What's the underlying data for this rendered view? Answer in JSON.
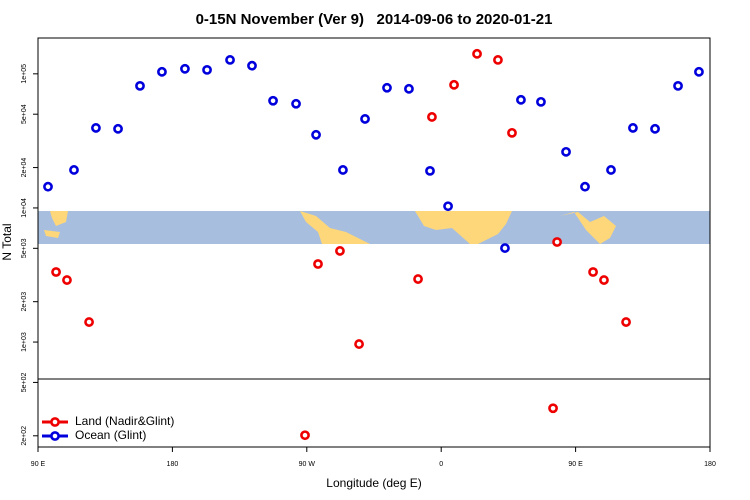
{
  "chart_data": {
    "type": "scatter",
    "title": "0-15N November (Ver 9)   2014-09-06 to 2020-01-21",
    "x_label": "Longitude (deg E)",
    "y_label": "N Total",
    "log_y": true,
    "legend": "bottom-left",
    "xlim": [
      90,
      540
    ],
    "xticks": [
      {
        "value": 90,
        "label": "90 E"
      },
      180,
      {
        "value": 270,
        "label": "90 W"
      },
      {
        "value": 360,
        "label": "0"
      },
      {
        "value": 450,
        "label": "90 E"
      },
      {
        "value": 540,
        "label": "180"
      }
    ],
    "ylim": [
      165,
      185000
    ],
    "yticks": [
      {
        "value": 200,
        "label": "2e+02"
      },
      {
        "value": 500,
        "label": "5e+02"
      },
      {
        "value": 1000,
        "label": "1e+03"
      },
      {
        "value": 2000,
        "label": "2e+03"
      },
      {
        "value": 5000,
        "label": "5e+03"
      },
      {
        "value": 10000,
        "label": "1e+04"
      },
      {
        "value": 20000,
        "label": "2e+04"
      },
      {
        "value": 50000,
        "label": "5e+04"
      },
      {
        "value": 100000,
        "label": "1e+05"
      }
    ],
    "series": [
      {
        "name": "Land (Nadir&Glint)",
        "color": "#ee0000",
        "x": [
          102.1,
          109.4,
          124.2,
          268.8,
          277.5,
          292.2,
          305.0,
          344.5,
          353.8,
          368.6,
          384.0,
          398.0,
          407.4,
          434.9,
          437.6,
          461.7,
          469.0,
          483.8
        ],
        "values": [
          3330,
          2900,
          1410,
          202,
          3820,
          4780,
          966,
          2950,
          47700,
          82800,
          141000,
          127000,
          36300,
          321,
          5570,
          3330,
          2900,
          1410
        ]
      },
      {
        "name": "Ocean (Glint)",
        "color": "#0000dd",
        "x": [
          96.7,
          114.1,
          128.8,
          143.6,
          158.3,
          173.0,
          188.4,
          203.2,
          218.6,
          233.3,
          247.4,
          262.8,
          276.2,
          294.2,
          309.0,
          323.7,
          338.4,
          352.5,
          364.6,
          402.7,
          413.4,
          426.8,
          443.6,
          456.3,
          473.7,
          488.4,
          503.2,
          518.6,
          532.6
        ],
        "values": [
          14400,
          19200,
          39500,
          38900,
          81300,
          103500,
          109000,
          107000,
          127000,
          115000,
          63000,
          59800,
          35100,
          19200,
          46100,
          78700,
          77300,
          18900,
          10300,
          5020,
          64000,
          61800,
          26200,
          14400,
          19200,
          39500,
          38900,
          81300,
          103500
        ]
      }
    ]
  }
}
